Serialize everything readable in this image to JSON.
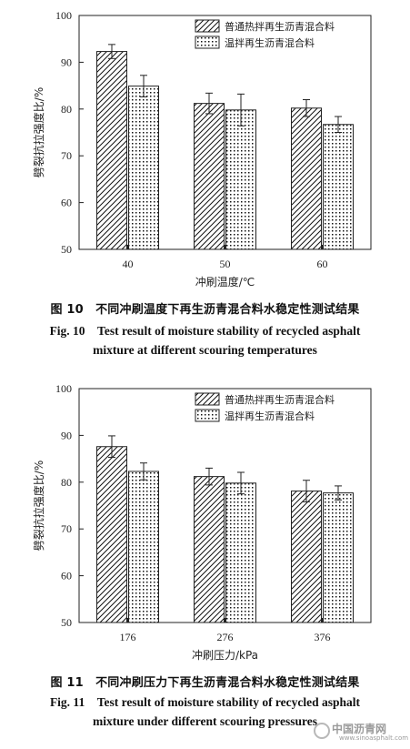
{
  "figure10": {
    "caption_zh": "图 10　不同冲刷温度下再生沥青混合料水稳定性测试结果",
    "caption_en_line1": "Fig. 10　Test result of moisture stability of recycled asphalt",
    "caption_en_line2": "mixture at different scouring temperatures"
  },
  "figure11": {
    "caption_zh": "图 11　不同冲刷压力下再生沥青混合料水稳定性测试结果",
    "caption_en_line1": "Fig. 11　Test result of moisture stability of recycled asphalt",
    "caption_en_line2": "mixture under different scouring pressures"
  },
  "watermark": {
    "text": "中国沥青网",
    "url": "www.sinoasphalt.com"
  },
  "chart_data": [
    {
      "type": "bar",
      "xlabel": "冲刷温度/℃",
      "ylabel": "劈裂抗拉强度比/%",
      "categories": [
        "40",
        "50",
        "60"
      ],
      "ylim": [
        50,
        100
      ],
      "yticks": [
        50,
        60,
        70,
        80,
        90,
        100
      ],
      "legend_position": "top-right",
      "series": [
        {
          "name": "普通热拌再生沥青混合料",
          "pattern": "diagonal-hatch",
          "values": [
            92.3,
            81.2,
            80.2
          ],
          "errors": [
            1.5,
            2.2,
            1.8
          ]
        },
        {
          "name": "温拌再生沥青混合料",
          "pattern": "dots",
          "values": [
            84.9,
            79.8,
            76.7
          ],
          "errors": [
            2.3,
            3.4,
            1.7
          ]
        }
      ]
    },
    {
      "type": "bar",
      "xlabel": "冲刷压力/kPa",
      "ylabel": "劈裂抗拉强度比/%",
      "categories": [
        "176",
        "276",
        "376"
      ],
      "ylim": [
        50,
        100
      ],
      "yticks": [
        50,
        60,
        70,
        80,
        90,
        100
      ],
      "legend_position": "top-right",
      "series": [
        {
          "name": "普通热拌再生沥青混合料",
          "pattern": "diagonal-hatch",
          "values": [
            87.6,
            81.2,
            78.1
          ],
          "errors": [
            2.3,
            1.8,
            2.3
          ]
        },
        {
          "name": "温拌再生沥青混合料",
          "pattern": "dots",
          "values": [
            82.3,
            79.8,
            77.7
          ],
          "errors": [
            1.8,
            2.3,
            1.5
          ]
        }
      ]
    }
  ]
}
